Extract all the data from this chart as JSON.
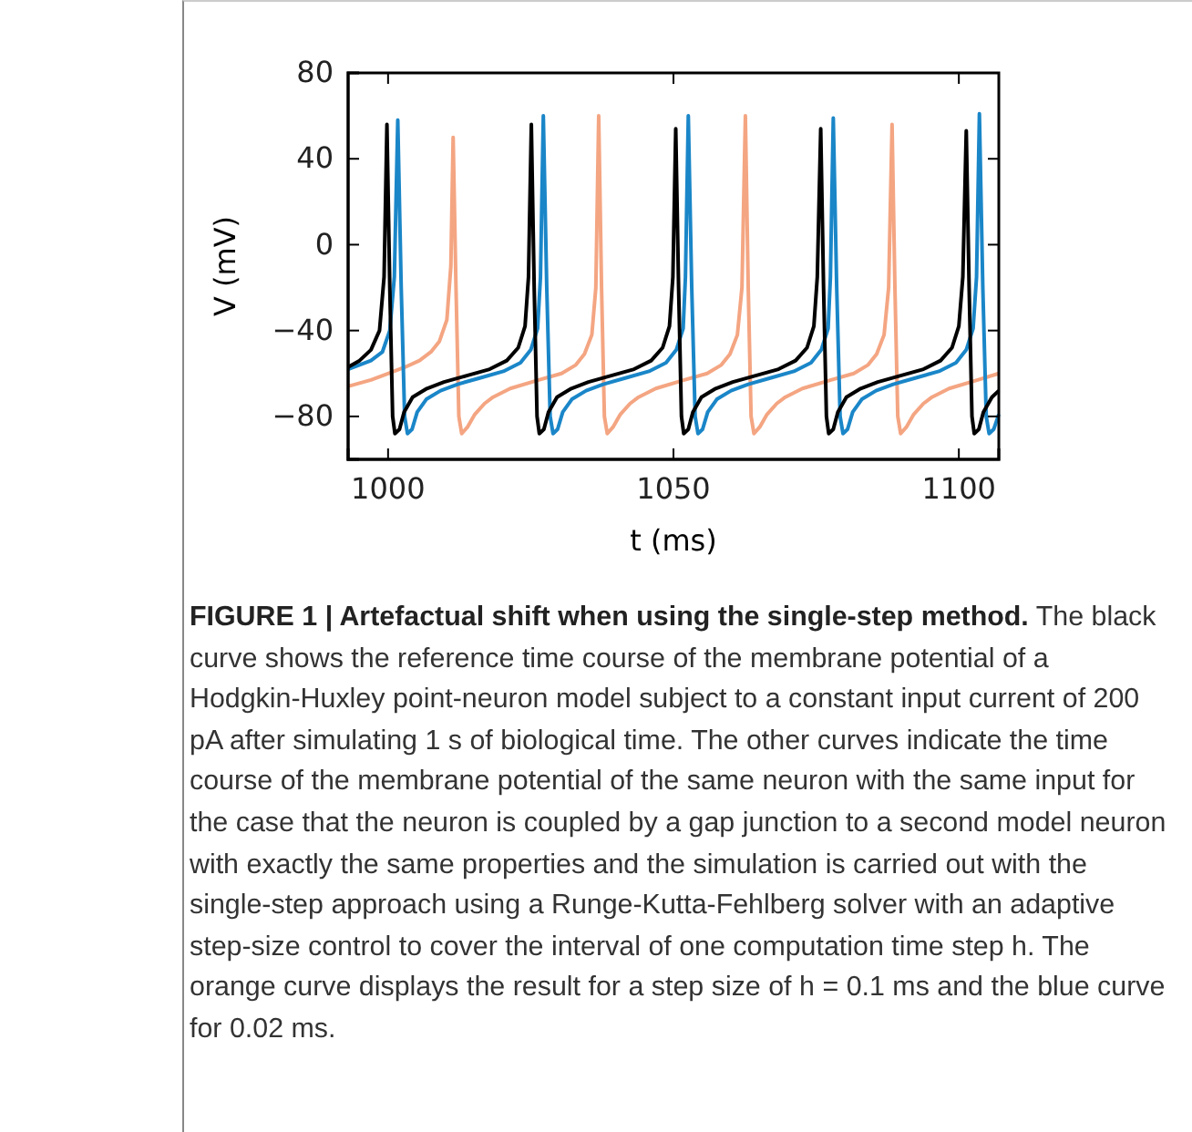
{
  "chart_data": {
    "type": "line",
    "xlabel": "t (ms)",
    "ylabel": "V (mV)",
    "xlim": [
      993,
      1107
    ],
    "ylim": [
      -100,
      80
    ],
    "xticks": [
      1000,
      1050,
      1100
    ],
    "yticks": [
      {
        "value": -80,
        "label": "−80"
      },
      {
        "value": -40,
        "label": "−40"
      },
      0,
      40,
      80
    ],
    "grid": false,
    "line_style": "solid",
    "marker": "none",
    "series": [
      {
        "color": "#f4a582",
        "x": [
          993,
          997,
          1000,
          1003,
          1005.5,
          1007.5,
          1009,
          1010.3,
          1011.0,
          1011.4,
          1011.9,
          1012.4,
          1012.9,
          1013.9,
          1015.2,
          1016.9,
          1018.4,
          1021.4,
          1026.4,
          1030.4,
          1032.9,
          1034.4,
          1035.7,
          1036.4,
          1036.9,
          1037.4,
          1037.9,
          1038.4,
          1039.4,
          1040.7,
          1042.4,
          1043.9,
          1046.9,
          1051.9,
          1055.9,
          1058.4,
          1059.9,
          1061.2,
          1062.0,
          1062.6,
          1063.1,
          1063.6,
          1064.1,
          1065.1,
          1066.4,
          1068.1,
          1069.6,
          1072.6,
          1077.6,
          1081.6,
          1084.1,
          1085.6,
          1086.9,
          1087.7,
          1088.3,
          1088.8,
          1089.3,
          1089.8,
          1090.8,
          1092.1,
          1093.8,
          1095.3,
          1098.3,
          1103.3,
          1107
        ],
        "values": [
          -66,
          -63,
          -60,
          -57,
          -54,
          -50,
          -45,
          -35,
          -10,
          50,
          -20,
          -80,
          -88,
          -85,
          -79,
          -74,
          -71,
          -67,
          -63,
          -60,
          -56,
          -51,
          -42,
          -20,
          60,
          -20,
          -80,
          -88,
          -85,
          -79,
          -74,
          -71,
          -67,
          -63,
          -60,
          -56,
          -51,
          -42,
          -20,
          60,
          -20,
          -80,
          -88,
          -85,
          -79,
          -74,
          -71,
          -67,
          -63,
          -60,
          -56,
          -51,
          -42,
          -20,
          56,
          -20,
          -80,
          -88,
          -85,
          -79,
          -74,
          -71,
          -67,
          -63,
          -60
        ]
      },
      {
        "color": "#1a86c8",
        "x": [
          993,
          995,
          997,
          999,
          1000.3,
          1001.1,
          1001.7,
          1002.3,
          1002.9,
          1003.4,
          1004.2,
          1005.1,
          1006.7,
          1009.2,
          1012.2,
          1016.2,
          1020.2,
          1023.2,
          1025.0,
          1026.2,
          1026.7,
          1027.2,
          1027.8,
          1028.4,
          1028.9,
          1029.7,
          1030.6,
          1032.2,
          1034.7,
          1037.7,
          1041.7,
          1045.7,
          1048.7,
          1050.5,
          1051.7,
          1052.1,
          1052.6,
          1053.2,
          1053.8,
          1054.3,
          1055.1,
          1056.0,
          1057.6,
          1060.1,
          1063.1,
          1067.1,
          1071.1,
          1074.1,
          1075.9,
          1077.1,
          1077.5,
          1078.0,
          1078.6,
          1079.2,
          1079.7,
          1080.5,
          1081.4,
          1083.0,
          1085.5,
          1088.5,
          1092.5,
          1096.5,
          1099.5,
          1101.3,
          1102.5,
          1103.1,
          1103.6,
          1104.2,
          1104.8,
          1105.3,
          1106.1,
          1107
        ],
        "values": [
          -58,
          -56,
          -54,
          -50,
          -40,
          -15,
          58,
          -20,
          -80,
          -88,
          -86,
          -78,
          -72,
          -68,
          -65,
          -62,
          -59,
          -55,
          -49,
          -39,
          -15,
          60,
          -20,
          -80,
          -88,
          -86,
          -78,
          -72,
          -68,
          -65,
          -62,
          -59,
          -55,
          -49,
          -39,
          -15,
          60,
          -20,
          -80,
          -88,
          -86,
          -78,
          -72,
          -68,
          -65,
          -62,
          -59,
          -55,
          -49,
          -39,
          -15,
          59,
          -20,
          -80,
          -88,
          -86,
          -78,
          -72,
          -68,
          -65,
          -62,
          -59,
          -55,
          -49,
          -39,
          -15,
          61,
          -20,
          -80,
          -88,
          -86,
          -79
        ]
      },
      {
        "color": "#000000",
        "x": [
          993,
          995,
          997,
          998.5,
          999.3,
          999.8,
          1000.3,
          1000.8,
          1001.2,
          1002.0,
          1002.8,
          1004.3,
          1006.8,
          1009.8,
          1013.8,
          1017.8,
          1020.8,
          1022.8,
          1024.0,
          1024.6,
          1025.1,
          1025.6,
          1026.1,
          1026.5,
          1027.3,
          1028.1,
          1029.6,
          1032.1,
          1035.1,
          1039.1,
          1043.1,
          1046.1,
          1048.1,
          1049.3,
          1049.9,
          1050.4,
          1050.9,
          1051.4,
          1051.8,
          1052.6,
          1053.4,
          1054.9,
          1057.4,
          1060.4,
          1064.4,
          1068.4,
          1071.4,
          1073.4,
          1074.6,
          1075.2,
          1075.8,
          1076.3,
          1076.8,
          1077.2,
          1078.0,
          1078.8,
          1080.3,
          1082.8,
          1085.8,
          1089.8,
          1093.8,
          1096.8,
          1098.8,
          1100.0,
          1100.7,
          1101.3,
          1101.8,
          1102.3,
          1102.7,
          1103.5,
          1104.3,
          1105.8,
          1107
        ],
        "values": [
          -57,
          -54,
          -49,
          -40,
          -15,
          56,
          -20,
          -80,
          -88,
          -86,
          -78,
          -71,
          -67,
          -64,
          -61,
          -58,
          -54,
          -48,
          -38,
          -15,
          56,
          -20,
          -80,
          -88,
          -86,
          -78,
          -71,
          -67,
          -64,
          -61,
          -58,
          -54,
          -48,
          -38,
          -15,
          54,
          -20,
          -80,
          -88,
          -86,
          -78,
          -71,
          -67,
          -64,
          -61,
          -58,
          -54,
          -48,
          -38,
          -15,
          54,
          -20,
          -80,
          -88,
          -86,
          -78,
          -71,
          -67,
          -64,
          -61,
          -58,
          -54,
          -48,
          -38,
          -15,
          53,
          -20,
          -80,
          -88,
          -86,
          -78,
          -71,
          -68
        ]
      }
    ],
    "annotations": [
      "FIGURE 1 | Artefactual shift when using the single-step method.",
      "The black curve shows the reference time course of the membrane potential of a Hodgkin-Huxley point-neuron model subject to a constant input current of 200 pA after simulating 1 s of biological time. The other curves indicate the time course of the membrane potential of the same neuron with the same input for the case that the neuron is coupled by a gap junction to a second model neuron with exactly the same properties and the simulation is carried out with the single-step approach using a Runge-Kutta-Fehlberg solver with an adaptive step-size control to cover the interval of one computation time step h. The orange curve displays the result for a step size of h = 0.1 ms and the blue curve for 0.02 ms."
    ]
  }
}
